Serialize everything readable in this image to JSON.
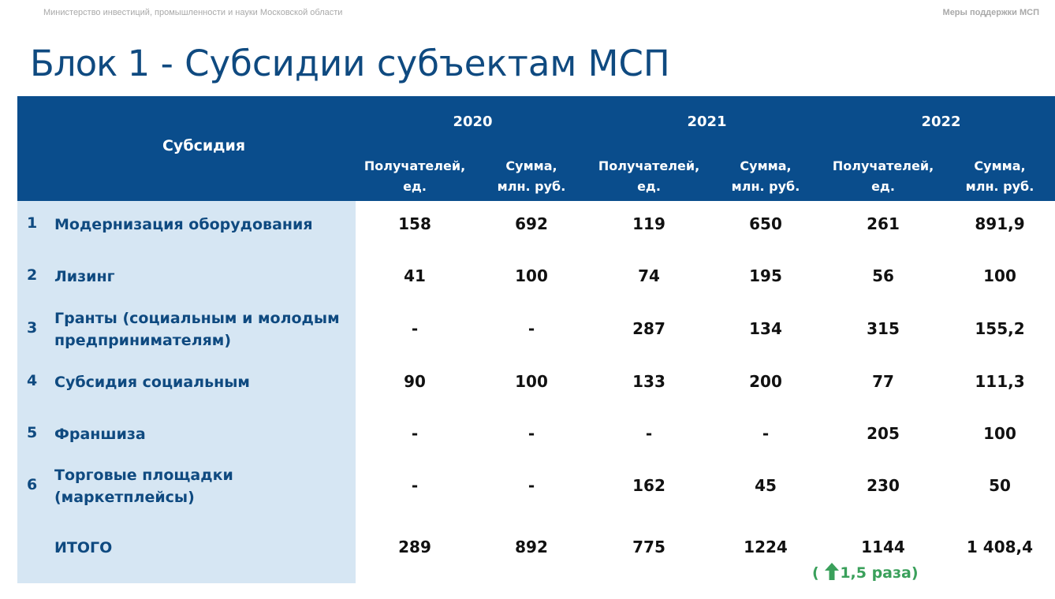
{
  "header": {
    "ministry": "Министерство инвестиций, промышленности и науки Московской области",
    "section": "Меры поддержки МСП"
  },
  "title": {
    "bold": "Блок 1",
    "rest": " - Субсидии субъектам МСП"
  },
  "table": {
    "subsidy_header": "Субсидия",
    "years": [
      "2020",
      "2021",
      "2022"
    ],
    "col_recipients_l1": "Получателей,",
    "col_recipients_l2": "ед.",
    "col_sum_l1": "Сумма,",
    "col_sum_l2": "млн. руб.",
    "rows": [
      {
        "num": "1",
        "name": "Модернизация оборудования",
        "values": [
          "158",
          "692",
          "119",
          "650",
          "261",
          "891,9"
        ]
      },
      {
        "num": "2",
        "name": "Лизинг",
        "values": [
          "41",
          "100",
          "74",
          "195",
          "56",
          "100"
        ]
      },
      {
        "num": "3",
        "name": "Гранты (социальным и молодым предпринимателям)",
        "values": [
          "-",
          "-",
          "287",
          "134",
          "315",
          "155,2"
        ]
      },
      {
        "num": "4",
        "name": "Субсидия социальным",
        "values": [
          "90",
          "100",
          "133",
          "200",
          "77",
          "111,3"
        ]
      },
      {
        "num": "5",
        "name": "Франшиза",
        "values": [
          "-",
          "-",
          "-",
          "-",
          "205",
          "100"
        ]
      },
      {
        "num": "6",
        "name": "Торговые площадки (маркетплейсы)",
        "values": [
          "-",
          "-",
          "162",
          "45",
          "230",
          "50"
        ]
      }
    ],
    "total": {
      "name": "ИТОГО",
      "values": [
        "289",
        "892",
        "775",
        "1224",
        "1144",
        "1 408,4"
      ]
    },
    "growth": {
      "open": "(",
      "text": "1,5 раза)",
      "icon": "arrow-up-icon",
      "color": "#3aa05b"
    }
  },
  "colors": {
    "header_bg": "#0a4d8c",
    "side_bg": "#d6e6f3",
    "title": "#0f4a80"
  }
}
